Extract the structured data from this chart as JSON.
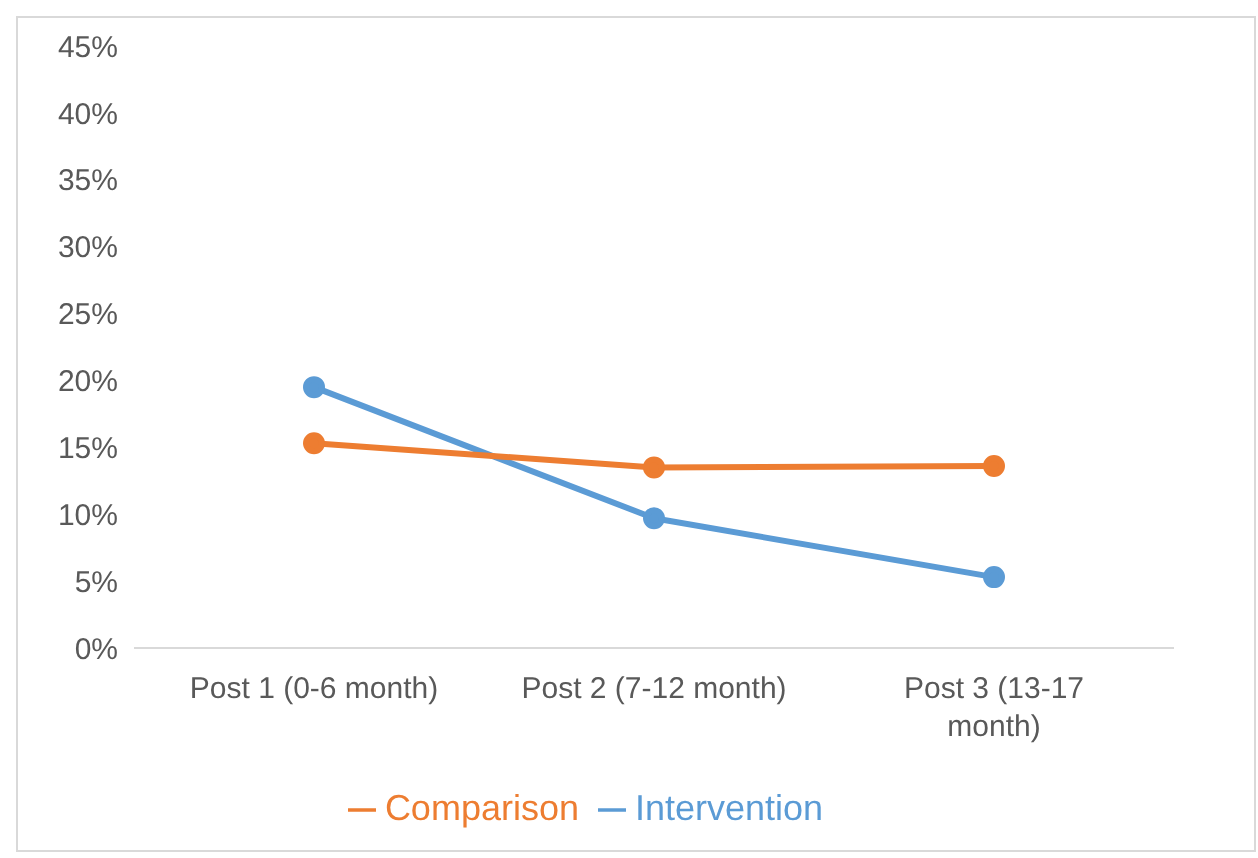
{
  "chart_data": {
    "type": "line",
    "categories": [
      "Post 1 (0-6 month)",
      "Post 2 (7-12 month)",
      "Post 3 (13-17 month)"
    ],
    "series": [
      {
        "name": "Intervention",
        "color": "#5b9bd5",
        "values": [
          19.5,
          9.7,
          5.3
        ]
      },
      {
        "name": "Comparison",
        "color": "#ed7d31",
        "values": [
          15.3,
          13.5,
          13.6
        ]
      }
    ],
    "ylim": [
      0,
      45
    ],
    "yticks": [
      {
        "value": 0,
        "label": "0%"
      },
      {
        "value": 5,
        "label": "5%"
      },
      {
        "value": 10,
        "label": "10%"
      },
      {
        "value": 15,
        "label": "15%"
      },
      {
        "value": 20,
        "label": "20%"
      },
      {
        "value": 25,
        "label": "25%"
      },
      {
        "value": 30,
        "label": "30%"
      },
      {
        "value": 35,
        "label": "35%"
      },
      {
        "value": 40,
        "label": "40%"
      },
      {
        "value": 45,
        "label": "45%"
      }
    ],
    "grid": false,
    "legend": "bottom",
    "marker": "circle",
    "line_style": "solid"
  }
}
